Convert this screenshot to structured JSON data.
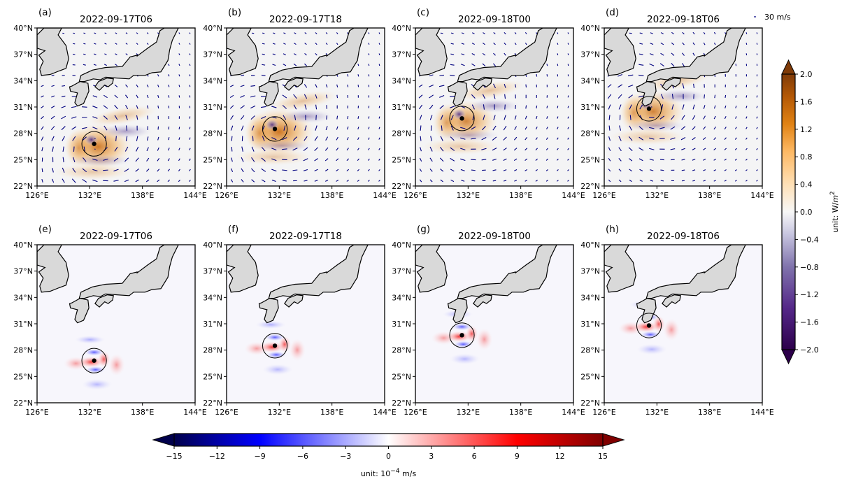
{
  "chart_data": [
    {
      "type": "heatmap",
      "row": "top",
      "variable_unit": "W/m^2",
      "colormap": "PuOr_r",
      "colorbar": {
        "label": "unit: W/m^2",
        "ticks": [
          2.0,
          1.6,
          1.2,
          0.8,
          0.4,
          0.0,
          -0.4,
          -0.8,
          -1.2,
          -1.6,
          -2.0
        ],
        "tick_labels": [
          "2.0",
          "1.6",
          "1.2",
          "0.8",
          "0.4",
          "0.0",
          "−0.4",
          "−0.8",
          "−1.2",
          "−1.6",
          "−2.0"
        ],
        "range": [
          -2.0,
          2.0
        ],
        "extend": "both",
        "orientation": "vertical",
        "placement": "right"
      },
      "quiver_key": "30 m/s",
      "panels": [
        {
          "label": "(a)",
          "title": "2022-09-17T06",
          "center_lon": 132.5,
          "center_lat": 26.8,
          "radius_deg": 1.4,
          "max_value": 1.8,
          "min_value": -1.8
        },
        {
          "label": "(b)",
          "title": "2022-09-17T18",
          "center_lon": 131.5,
          "center_lat": 28.5,
          "radius_deg": 1.4,
          "max_value": 2.0,
          "min_value": -1.6
        },
        {
          "label": "(c)",
          "title": "2022-09-18T00",
          "center_lon": 131.3,
          "center_lat": 29.7,
          "radius_deg": 1.4,
          "max_value": 1.4,
          "min_value": -0.9
        },
        {
          "label": "(d)",
          "title": "2022-09-18T06",
          "center_lon": 131.1,
          "center_lat": 30.8,
          "radius_deg": 1.4,
          "max_value": 1.5,
          "min_value": -0.9
        }
      ]
    },
    {
      "type": "heatmap",
      "row": "bottom",
      "variable_unit": "10^-4 m/s",
      "colormap": "seismic",
      "colorbar": {
        "label": "unit: 10⁻⁴ m/s",
        "ticks": [
          -15,
          -12,
          -9,
          -6,
          -3,
          0,
          3,
          6,
          9,
          12,
          15
        ],
        "tick_labels": [
          "−15",
          "−12",
          "−9",
          "−6",
          "−3",
          "0",
          "3",
          "6",
          "9",
          "12",
          "15"
        ],
        "range": [
          -15,
          15
        ],
        "extend": "both",
        "orientation": "horizontal",
        "placement": "bottom"
      },
      "panels": [
        {
          "label": "(e)",
          "title": "2022-09-17T06",
          "center_lon": 132.5,
          "center_lat": 26.8,
          "radius_deg": 1.4,
          "max_value": 9,
          "min_value": -7
        },
        {
          "label": "(f)",
          "title": "2022-09-17T18",
          "center_lon": 131.5,
          "center_lat": 28.5,
          "radius_deg": 1.4,
          "max_value": 9,
          "min_value": -8
        },
        {
          "label": "(g)",
          "title": "2022-09-18T00",
          "center_lon": 131.3,
          "center_lat": 29.7,
          "radius_deg": 1.4,
          "max_value": 7,
          "min_value": -9
        },
        {
          "label": "(h)",
          "title": "2022-09-18T06",
          "center_lon": 131.1,
          "center_lat": 30.8,
          "radius_deg": 1.4,
          "max_value": 6,
          "min_value": -8
        }
      ]
    }
  ],
  "axes": {
    "xlim": [
      126,
      144
    ],
    "ylim": [
      22,
      40
    ],
    "xticks": [
      126,
      132,
      138,
      144
    ],
    "yticks": [
      22,
      25,
      28,
      31,
      34,
      37,
      40
    ],
    "xtick_labels": [
      "126°E",
      "132°E",
      "138°E",
      "144°E"
    ],
    "ytick_labels": [
      "22°N",
      "25°N",
      "28°N",
      "31°N",
      "34°N",
      "37°N",
      "40°N"
    ],
    "grid": false
  },
  "colors": {
    "land": "#d9d9d9",
    "vector": "#000080",
    "ocean_top": "#f4f4f5",
    "ocean_bottom": "#f7f6fc"
  }
}
